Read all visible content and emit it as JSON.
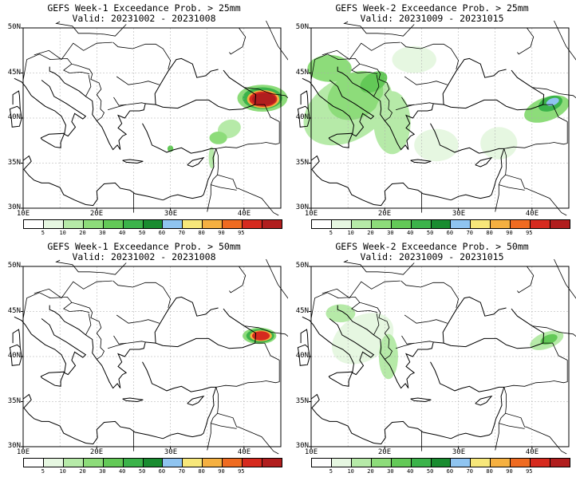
{
  "panels": [
    {
      "title": "GEFS Week-1 Exceedance Prob. > 25mm",
      "valid": "Valid: 20231002 - 20231008"
    },
    {
      "title": "GEFS Week-2 Exceedance Prob. > 25mm",
      "valid": "Valid: 20231009 - 20231015"
    },
    {
      "title": "GEFS Week-1 Exceedance Prob. > 50mm",
      "valid": "Valid: 20231002 - 20231008"
    },
    {
      "title": "GEFS Week-2 Exceedance Prob. > 50mm",
      "valid": "Valid: 20231009 - 20231015"
    }
  ],
  "lat_labels": [
    "50N",
    "45N",
    "40N",
    "35N",
    "30N"
  ],
  "lon_labels": [
    "10E",
    "20E",
    "30E",
    "40E"
  ],
  "colorbar": {
    "ticks": [
      "5",
      "10",
      "20",
      "30",
      "40",
      "50",
      "60",
      "70",
      "80",
      "90",
      "95"
    ],
    "colors": [
      "#ffffff",
      "#e6f7e1",
      "#b6eaa8",
      "#8ddc7a",
      "#63c957",
      "#3bb34a",
      "#198c30",
      "#8fc4f0",
      "#f7e77a",
      "#f5b041",
      "#ef6b21",
      "#d62a1e",
      "#b11e1e"
    ]
  }
}
